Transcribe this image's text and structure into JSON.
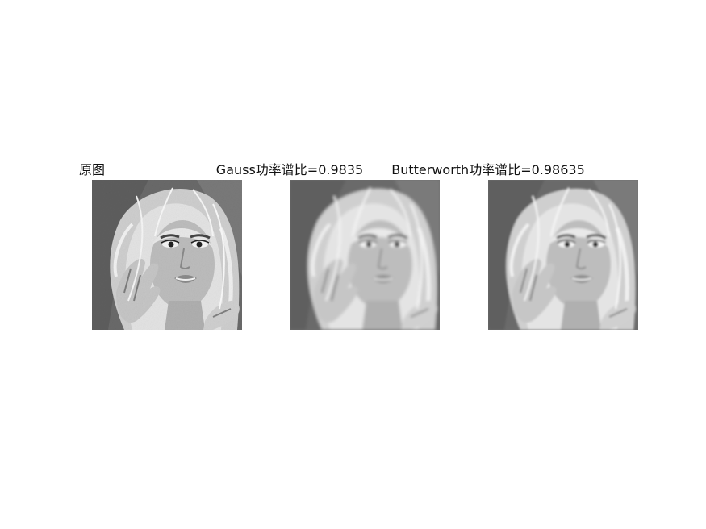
{
  "panels": [
    {
      "title": "原图",
      "image_icon": "portrait-photo"
    },
    {
      "title": "Gauss功率谱比=0.9835",
      "image_icon": "portrait-photo-blurred"
    },
    {
      "title": "Butterworth功率谱比=0.98635",
      "image_icon": "portrait-photo-blurred"
    }
  ]
}
